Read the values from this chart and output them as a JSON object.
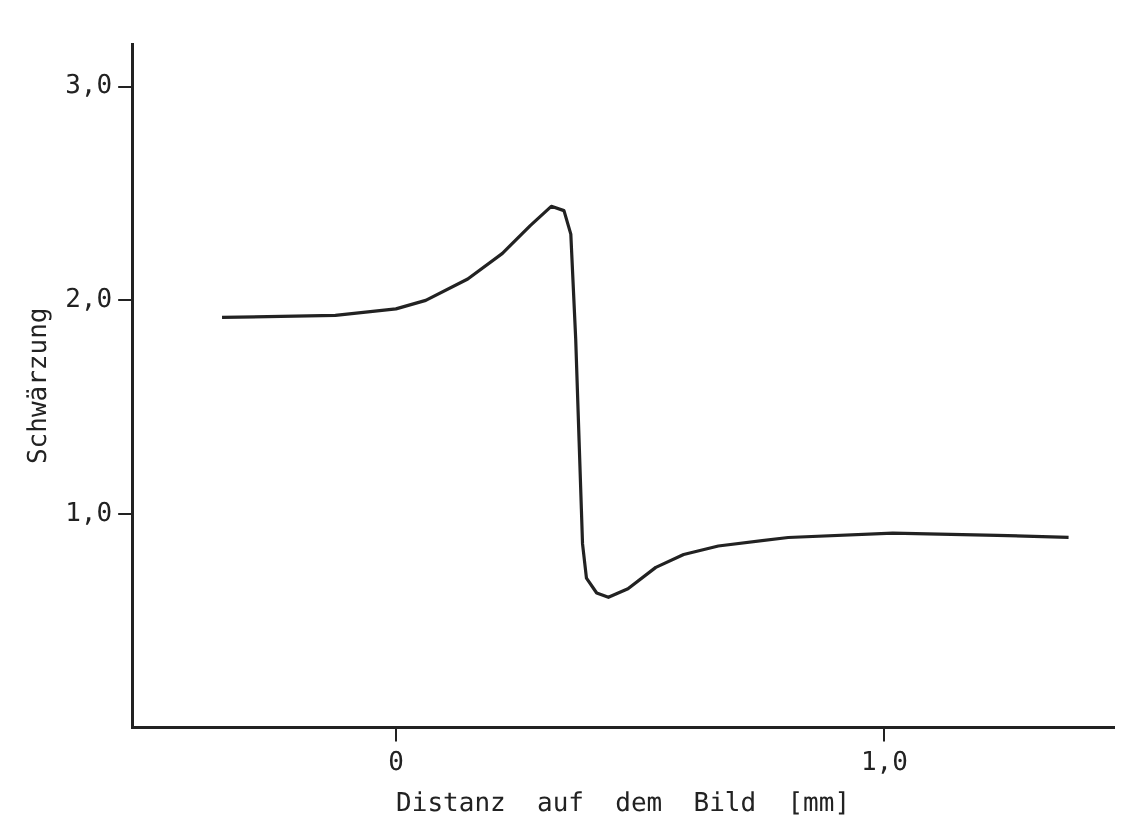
{
  "chart_data": {
    "type": "line",
    "xlabel": "Distanz  auf  dem  Bild  [mm]",
    "ylabel": "Schwärzung",
    "x": [
      -0.356,
      -0.124,
      0,
      0.061,
      0.147,
      0.218,
      0.275,
      0.318,
      0.344,
      0.358,
      0.368,
      0.375,
      0.382,
      0.39,
      0.411,
      0.435,
      0.475,
      0.532,
      0.589,
      0.66,
      0.803,
      1.017,
      1.231,
      1.377
    ],
    "series": [
      {
        "color": "#222222",
        "values": [
          1.92,
          1.93,
          1.96,
          2.0,
          2.1,
          2.22,
          2.35,
          2.44,
          2.42,
          2.31,
          1.82,
          1.34,
          0.86,
          0.7,
          0.63,
          0.61,
          0.65,
          0.75,
          0.81,
          0.85,
          0.89,
          0.91,
          0.9,
          0.89
        ]
      }
    ],
    "xlim": [
      -0.54,
      1.47
    ],
    "ylim": [
      0,
      3.2
    ],
    "xticks": [
      0,
      {
        "value": 1,
        "label": "1,0"
      }
    ],
    "yticks": [
      {
        "value": 1,
        "label": "1,0"
      },
      {
        "value": 2,
        "label": "2,0"
      },
      {
        "value": 3,
        "label": "3,0"
      }
    ],
    "grid": false,
    "legend": false,
    "marker": "none",
    "line_style": "solid"
  }
}
